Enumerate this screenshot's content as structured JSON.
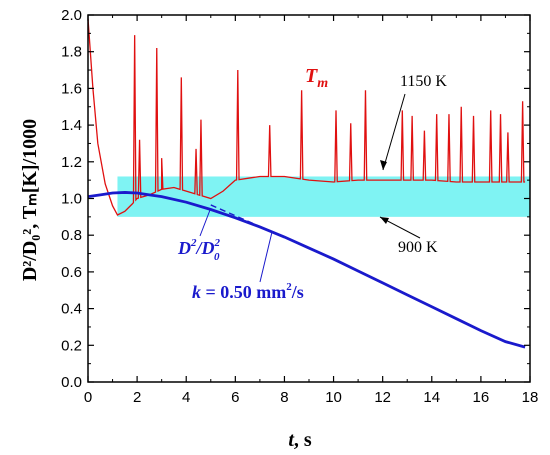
{
  "chart_data": {
    "type": "line",
    "xlabel": "t",
    "xlabel_unit": ", s",
    "ylabel": "D²/D₀², Tₘ[K]/1000",
    "xlim": [
      0,
      18
    ],
    "ylim": [
      0,
      2.0
    ],
    "x_ticks": [
      0,
      2,
      4,
      6,
      8,
      10,
      12,
      14,
      16,
      18
    ],
    "y_ticks": [
      0.0,
      0.2,
      0.4,
      0.6,
      0.8,
      1.0,
      1.2,
      1.4,
      1.6,
      1.8,
      2.0
    ],
    "x_tick_labels": [
      "0",
      "2",
      "4",
      "6",
      "8",
      "10",
      "12",
      "14",
      "16",
      "18"
    ],
    "y_tick_labels": [
      "0.0",
      "0.2",
      "0.4",
      "0.6",
      "0.8",
      "1.0",
      "1.2",
      "1.4",
      "1.6",
      "1.8",
      "2.0"
    ],
    "band": {
      "y_low": 0.9,
      "y_high": 1.12,
      "x_start": 1.2,
      "x_end": 18,
      "color": "#7ff3f3"
    },
    "series": [
      {
        "name": "D²/D₀²",
        "color": "#1a1acc",
        "x": [
          0,
          0.5,
          1.0,
          1.5,
          2.0,
          2.5,
          3,
          4,
          5,
          6,
          7,
          8,
          9,
          10,
          11,
          12,
          13,
          14,
          15,
          16,
          17,
          17.8
        ],
        "y": [
          1.01,
          1.02,
          1.03,
          1.033,
          1.03,
          1.02,
          1.01,
          0.98,
          0.94,
          0.895,
          0.845,
          0.79,
          0.73,
          0.67,
          0.605,
          0.54,
          0.475,
          0.41,
          0.345,
          0.28,
          0.22,
          0.19
        ]
      },
      {
        "name": "Tm",
        "color": "#e01010",
        "base_x": [
          0,
          0.2,
          0.4,
          0.7,
          1.0,
          1.2,
          1.5,
          1.8,
          2.0,
          2.5,
          3,
          3.5,
          4,
          4.5,
          5,
          5.5,
          6,
          6.5,
          7,
          8,
          9,
          10,
          11,
          12,
          13,
          14,
          15,
          16,
          17,
          17.8
        ],
        "base_y": [
          1.98,
          1.6,
          1.3,
          1.08,
          0.96,
          0.91,
          0.93,
          0.97,
          1.0,
          1.02,
          1.05,
          1.06,
          1.04,
          1.02,
          1.0,
          1.04,
          1.1,
          1.11,
          1.12,
          1.12,
          1.1,
          1.09,
          1.1,
          1.1,
          1.1,
          1.1,
          1.09,
          1.09,
          1.09,
          1.09
        ],
        "spikes_x": [
          1.9,
          2.1,
          2.8,
          3.0,
          3.8,
          4.4,
          4.6,
          6.1,
          7.4,
          8.7,
          10.1,
          10.7,
          11.3,
          12.8,
          13.2,
          13.7,
          14.2,
          14.7,
          15.2,
          15.7,
          16.4,
          16.8,
          17.1,
          17.7
        ],
        "spikes_y": [
          1.89,
          1.32,
          1.82,
          1.22,
          1.66,
          1.27,
          1.43,
          1.7,
          1.4,
          1.59,
          1.48,
          1.41,
          1.59,
          1.48,
          1.45,
          1.37,
          1.46,
          1.46,
          1.5,
          1.45,
          1.48,
          1.46,
          1.36,
          1.53
        ]
      }
    ],
    "fit_line": {
      "x": [
        5.0,
        9.0
      ],
      "y": [
        0.965,
        0.73
      ],
      "color": "#1a1acc"
    },
    "annotations": {
      "tm_label": "T",
      "tm_sub": "m",
      "k_prefix": "k",
      "k_text": " = 0.50 mm",
      "k_sup": "2",
      "k_suffix": "/s",
      "high_label": "1150 K",
      "low_label": "900 K",
      "d_label_main": "D",
      "d_label_sup": "2",
      "d_label_slash": "/D",
      "d_label_sub": "0",
      "d_label_sup2": "2"
    }
  }
}
